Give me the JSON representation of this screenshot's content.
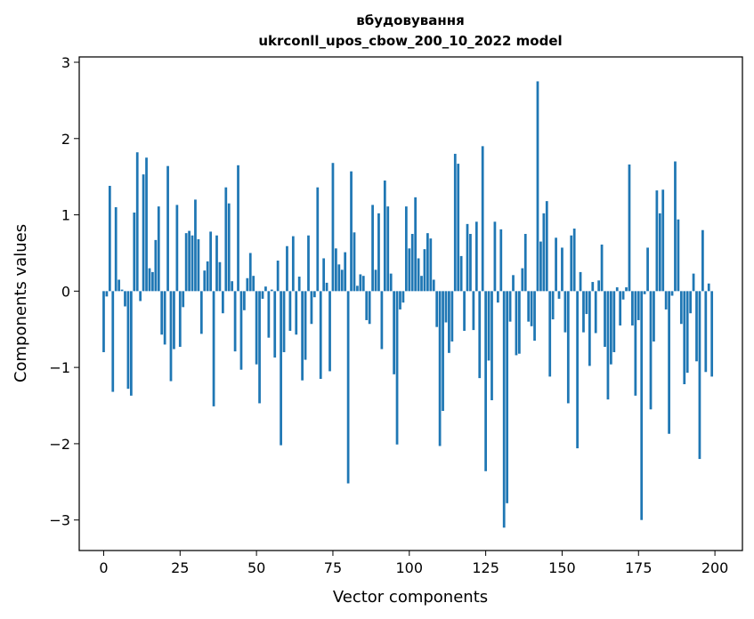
{
  "chart_data": {
    "type": "bar",
    "title_line1": "вбудовування",
    "title_line2": "ukrconll_upos_cbow_200_10_2022 model",
    "xlabel": "Vector components",
    "ylabel": "Components values",
    "xlim": [
      -8,
      209
    ],
    "ylim": [
      -3.4,
      3.07
    ],
    "xticks": [
      0,
      25,
      50,
      75,
      100,
      125,
      150,
      175,
      200
    ],
    "yticks": [
      -3,
      -2,
      -1,
      0,
      1,
      2,
      3
    ],
    "ytick_labels": [
      "−3",
      "−2",
      "−1",
      "0",
      "1",
      "2",
      "3"
    ],
    "bar_color": "#1f77b4",
    "values": [
      -0.8,
      -0.07,
      1.38,
      -1.32,
      1.1,
      0.15,
      0.02,
      -0.2,
      -1.28,
      -1.37,
      1.03,
      1.82,
      -0.13,
      1.53,
      1.75,
      0.3,
      0.25,
      0.67,
      1.11,
      -0.57,
      -0.7,
      1.64,
      -1.18,
      -0.76,
      1.13,
      -0.73,
      -0.21,
      0.76,
      0.79,
      0.73,
      1.2,
      0.68,
      -0.56,
      0.27,
      0.39,
      0.78,
      -1.51,
      0.73,
      0.38,
      -0.29,
      1.36,
      1.15,
      0.13,
      -0.79,
      1.65,
      -1.03,
      -0.25,
      0.17,
      0.5,
      0.2,
      -0.96,
      -1.47,
      -0.1,
      0.06,
      -0.61,
      0.02,
      -0.87,
      0.4,
      -2.02,
      -0.8,
      0.59,
      -0.52,
      0.72,
      -0.57,
      0.19,
      -1.17,
      -0.9,
      0.73,
      -0.43,
      -0.08,
      1.36,
      -1.15,
      0.43,
      0.11,
      -1.05,
      1.68,
      0.56,
      0.35,
      0.28,
      0.51,
      -2.52,
      1.57,
      0.77,
      0.07,
      0.22,
      0.2,
      -0.38,
      -0.43,
      1.13,
      0.28,
      1.02,
      -0.76,
      1.45,
      1.11,
      0.23,
      -1.09,
      -2.01,
      -0.24,
      -0.15,
      1.11,
      0.56,
      0.75,
      1.23,
      0.43,
      0.2,
      0.55,
      0.76,
      0.69,
      0.15,
      -0.47,
      -2.03,
      -1.57,
      -0.41,
      -0.81,
      -0.66,
      1.8,
      1.67,
      0.46,
      -0.52,
      0.88,
      0.75,
      -0.51,
      0.91,
      -1.14,
      1.9,
      -2.36,
      -0.91,
      -1.43,
      0.91,
      -0.15,
      0.81,
      -3.1,
      -2.78,
      -0.4,
      0.21,
      -0.84,
      -0.82,
      0.3,
      0.75,
      -0.4,
      -0.46,
      -0.65,
      2.75,
      0.65,
      1.02,
      1.18,
      -1.12,
      -0.37,
      0.7,
      -0.1,
      0.57,
      -0.54,
      -1.47,
      0.73,
      0.82,
      -2.06,
      0.25,
      -0.54,
      -0.3,
      -0.98,
      0.12,
      -0.55,
      0.14,
      0.61,
      -0.73,
      -1.42,
      -0.96,
      -0.8,
      0.05,
      -0.45,
      -0.11,
      0.05,
      1.66,
      -0.45,
      -1.37,
      -0.38,
      -3.0,
      -0.04,
      0.57,
      -1.55,
      -0.66,
      1.32,
      1.02,
      1.33,
      -0.24,
      -1.87,
      -0.06,
      1.7,
      0.94,
      -0.43,
      -1.22,
      -1.07,
      -0.29,
      0.23,
      -0.92,
      -2.2,
      0.8,
      -1.06,
      0.1,
      -1.12
    ]
  }
}
